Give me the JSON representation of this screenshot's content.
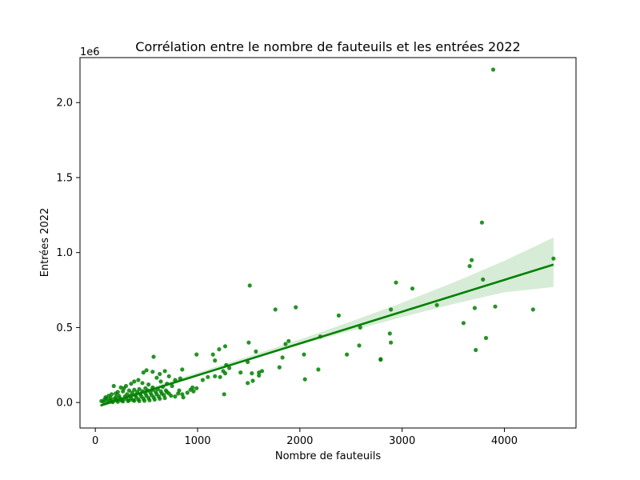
{
  "chart_data": {
    "type": "scatter",
    "title": "Corrélation entre le nombre de fauteuils et les entrées 2022",
    "xlabel": "Nombre de fauteuils",
    "ylabel": "Entrées 2022",
    "y_offset_label": "1e6",
    "xlim": [
      -150,
      4700
    ],
    "ylim": [
      -170000,
      2300000
    ],
    "x_ticks": [
      0,
      1000,
      2000,
      3000,
      4000
    ],
    "x_tick_labels": [
      "0",
      "1000",
      "2000",
      "3000",
      "4000"
    ],
    "y_ticks": [
      0,
      500000,
      1000000,
      1500000,
      2000000
    ],
    "y_tick_labels": [
      "0.0",
      "0.5",
      "1.0",
      "1.5",
      "2.0"
    ],
    "grid": false,
    "legend": "none",
    "colors": {
      "points": "#008000",
      "regression_line": "#008000",
      "confidence_band": "#b5dcb5"
    },
    "points": [
      [
        3890,
        2220000
      ],
      [
        3780,
        1200000
      ],
      [
        4480,
        960000
      ],
      [
        3680,
        950000
      ],
      [
        3660,
        910000
      ],
      [
        3790,
        820000
      ],
      [
        2940,
        800000
      ],
      [
        1510,
        780000
      ],
      [
        3100,
        760000
      ],
      [
        3340,
        650000
      ],
      [
        3910,
        640000
      ],
      [
        3710,
        630000
      ],
      [
        1960,
        635000
      ],
      [
        1760,
        620000
      ],
      [
        2890,
        620000
      ],
      [
        4280,
        620000
      ],
      [
        2380,
        580000
      ],
      [
        2590,
        500000
      ],
      [
        3600,
        530000
      ],
      [
        2880,
        460000
      ],
      [
        2200,
        440000
      ],
      [
        3820,
        430000
      ],
      [
        1890,
        410000
      ],
      [
        2890,
        400000
      ],
      [
        1500,
        400000
      ],
      [
        1860,
        390000
      ],
      [
        2580,
        380000
      ],
      [
        1270,
        375000
      ],
      [
        1210,
        355000
      ],
      [
        1570,
        340000
      ],
      [
        3720,
        350000
      ],
      [
        1150,
        320000
      ],
      [
        990,
        320000
      ],
      [
        2040,
        320000
      ],
      [
        2460,
        320000
      ],
      [
        1830,
        300000
      ],
      [
        570,
        305000
      ],
      [
        1170,
        280000
      ],
      [
        1490,
        270000
      ],
      [
        2790,
        285000
      ],
      [
        2790,
        290000
      ],
      [
        1280,
        250000
      ],
      [
        1800,
        235000
      ],
      [
        1310,
        230000
      ],
      [
        850,
        220000
      ],
      [
        1250,
        210000
      ],
      [
        1420,
        200000
      ],
      [
        1600,
        200000
      ],
      [
        1530,
        195000
      ],
      [
        1270,
        195000
      ],
      [
        1170,
        175000
      ],
      [
        1220,
        170000
      ],
      [
        1100,
        170000
      ],
      [
        2180,
        220000
      ],
      [
        1630,
        210000
      ],
      [
        1600,
        180000
      ],
      [
        1540,
        145000
      ],
      [
        1490,
        130000
      ],
      [
        2050,
        155000
      ],
      [
        1260,
        55000
      ],
      [
        500,
        215000
      ],
      [
        680,
        210000
      ],
      [
        560,
        205000
      ],
      [
        470,
        200000
      ],
      [
        630,
        190000
      ],
      [
        720,
        175000
      ],
      [
        830,
        160000
      ],
      [
        780,
        150000
      ],
      [
        600,
        165000
      ],
      [
        640,
        140000
      ],
      [
        700,
        125000
      ],
      [
        660,
        105000
      ],
      [
        750,
        110000
      ],
      [
        950,
        100000
      ],
      [
        990,
        95000
      ],
      [
        930,
        85000
      ],
      [
        820,
        80000
      ],
      [
        810,
        60000
      ],
      [
        860,
        35000
      ],
      [
        420,
        150000
      ],
      [
        380,
        140000
      ],
      [
        460,
        130000
      ],
      [
        520,
        120000
      ],
      [
        350,
        125000
      ],
      [
        300,
        110000
      ],
      [
        250,
        100000
      ],
      [
        280,
        95000
      ],
      [
        180,
        110000
      ],
      [
        560,
        100000
      ],
      [
        490,
        95000
      ],
      [
        430,
        90000
      ],
      [
        380,
        85000
      ],
      [
        330,
        80000
      ],
      [
        270,
        75000
      ],
      [
        220,
        70000
      ],
      [
        200,
        60000
      ],
      [
        160,
        55000
      ],
      [
        130,
        45000
      ],
      [
        100,
        35000
      ],
      [
        90,
        20000
      ],
      [
        60,
        10000
      ],
      [
        80,
        5000
      ],
      [
        140,
        15000
      ],
      [
        190,
        25000
      ],
      [
        240,
        30000
      ],
      [
        290,
        40000
      ],
      [
        340,
        45000
      ],
      [
        390,
        50000
      ],
      [
        440,
        55000
      ],
      [
        490,
        60000
      ],
      [
        540,
        65000
      ],
      [
        590,
        70000
      ],
      [
        640,
        75000
      ],
      [
        690,
        80000
      ],
      [
        720,
        60000
      ],
      [
        670,
        50000
      ],
      [
        620,
        40000
      ],
      [
        570,
        35000
      ],
      [
        520,
        30000
      ],
      [
        470,
        25000
      ],
      [
        420,
        20000
      ],
      [
        370,
        15000
      ],
      [
        320,
        10000
      ],
      [
        270,
        8000
      ],
      [
        220,
        5000
      ],
      [
        170,
        3000
      ],
      [
        120,
        2000
      ],
      [
        250,
        20000
      ],
      [
        300,
        25000
      ],
      [
        350,
        30000
      ],
      [
        400,
        35000
      ],
      [
        450,
        40000
      ],
      [
        500,
        45000
      ],
      [
        550,
        50000
      ],
      [
        600,
        55000
      ],
      [
        650,
        60000
      ],
      [
        700,
        70000
      ],
      [
        230,
        45000
      ],
      [
        310,
        55000
      ],
      [
        360,
        65000
      ],
      [
        410,
        70000
      ],
      [
        460,
        75000
      ],
      [
        510,
        80000
      ],
      [
        610,
        90000
      ],
      [
        560,
        85000
      ],
      [
        200,
        35000
      ],
      [
        150,
        30000
      ],
      [
        110,
        25000
      ],
      [
        330,
        15000
      ],
      [
        380,
        12000
      ],
      [
        430,
        10000
      ],
      [
        480,
        12000
      ],
      [
        530,
        15000
      ],
      [
        580,
        20000
      ],
      [
        630,
        25000
      ],
      [
        680,
        30000
      ],
      [
        260,
        12000
      ],
      [
        210,
        15000
      ],
      [
        160,
        10000
      ],
      [
        740,
        45000
      ],
      [
        780,
        40000
      ],
      [
        850,
        55000
      ],
      [
        900,
        65000
      ],
      [
        960,
        75000
      ],
      [
        1050,
        150000
      ]
    ],
    "regression_line": [
      [
        50,
        -20000
      ],
      [
        4480,
        920000
      ]
    ],
    "confidence_band": {
      "x": [
        50,
        500,
        1000,
        1500,
        2000,
        2500,
        3000,
        3500,
        4000,
        4480
      ],
      "upper": [
        -8000,
        93000,
        200000,
        308000,
        420000,
        540000,
        665000,
        800000,
        945000,
        1100000
      ],
      "lower": [
        -32000,
        77000,
        185000,
        287000,
        385000,
        478000,
        570000,
        657000,
        735000,
        770000
      ]
    }
  }
}
